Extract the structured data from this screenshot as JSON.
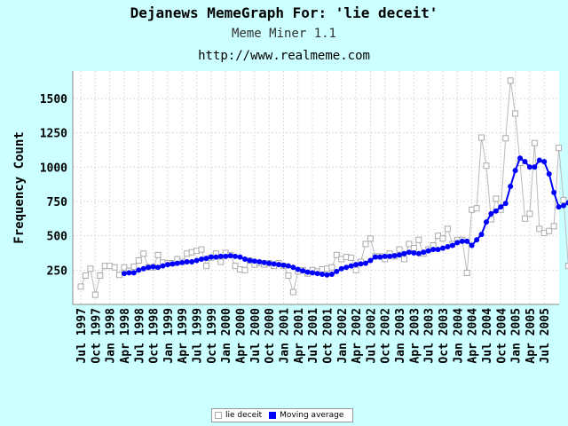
{
  "header": {
    "title": "Dejanews MemeGraph For: 'lie deceit'",
    "subtitle": "Meme Miner 1.1",
    "url": "http://www.realmeme.com"
  },
  "chart_data": {
    "type": "line",
    "ylabel": "Frequency Count",
    "xlabel": "",
    "ylim": [
      0,
      1700
    ],
    "yticks": [
      250,
      500,
      750,
      1000,
      1250,
      1500
    ],
    "grid": true,
    "legend_position": "bottom-center",
    "x_start": "1997-07",
    "x_tick_labels": [
      "Jul 1997",
      "Oct 1997",
      "Jan 1998",
      "Apr 1998",
      "Jul 1998",
      "Oct 1998",
      "Jan 1999",
      "Apr 1999",
      "Jul 1999",
      "Oct 1999",
      "Jan 2000",
      "Apr 2000",
      "Jul 2000",
      "Oct 2000",
      "Jan 2001",
      "Apr 2001",
      "Jul 2001",
      "Oct 2001",
      "Jan 2002",
      "Apr 2002",
      "Jul 2002",
      "Oct 2002",
      "Jan 2003",
      "Apr 2003",
      "Jul 2003",
      "Oct 2003",
      "Jan 2004",
      "Apr 2004",
      "Jul 2004",
      "Oct 2004",
      "Jan 2005",
      "Apr 2005",
      "Jul 2005"
    ],
    "series": [
      {
        "name": "lie deceit",
        "color": "#bbbbbb",
        "marker": "open-square",
        "values": [
          130,
          210,
          260,
          70,
          210,
          280,
          280,
          270,
          215,
          270,
          245,
          275,
          320,
          370,
          270,
          270,
          360,
          305,
          300,
          300,
          330,
          310,
          370,
          380,
          390,
          400,
          280,
          340,
          370,
          310,
          375,
          360,
          280,
          255,
          250,
          320,
          290,
          300,
          290,
          300,
          280,
          300,
          280,
          210,
          90,
          240,
          250,
          225,
          250,
          240,
          255,
          260,
          270,
          360,
          330,
          345,
          340,
          250,
          310,
          440,
          480,
          350,
          350,
          330,
          370,
          350,
          400,
          330,
          440,
          410,
          470,
          370,
          400,
          430,
          500,
          480,
          550,
          440,
          470,
          470,
          230,
          690,
          700,
          1215,
          1010,
          620,
          770,
          690,
          1210,
          1630,
          1390,
          1030,
          625,
          660,
          1175,
          550,
          520,
          535,
          570,
          1140,
          760,
          280
        ]
      },
      {
        "name": "Moving average",
        "color": "#0000ff",
        "marker": "filled-circle",
        "start_index": 9,
        "values": [
          225,
          230,
          230,
          250,
          260,
          270,
          275,
          270,
          280,
          290,
          295,
          300,
          305,
          310,
          310,
          320,
          330,
          335,
          345,
          345,
          350,
          350,
          355,
          350,
          345,
          330,
          320,
          315,
          310,
          305,
          300,
          295,
          290,
          285,
          280,
          270,
          255,
          245,
          235,
          230,
          225,
          220,
          215,
          220,
          240,
          260,
          270,
          280,
          290,
          295,
          300,
          320,
          345,
          345,
          350,
          350,
          355,
          360,
          370,
          380,
          375,
          370,
          380,
          390,
          400,
          400,
          410,
          420,
          430,
          450,
          460,
          460,
          430,
          470,
          510,
          600,
          660,
          680,
          710,
          735,
          860,
          975,
          1065,
          1040,
          1000,
          1000,
          1050,
          1040,
          950,
          815,
          710,
          720,
          740,
          690
        ]
      }
    ]
  }
}
